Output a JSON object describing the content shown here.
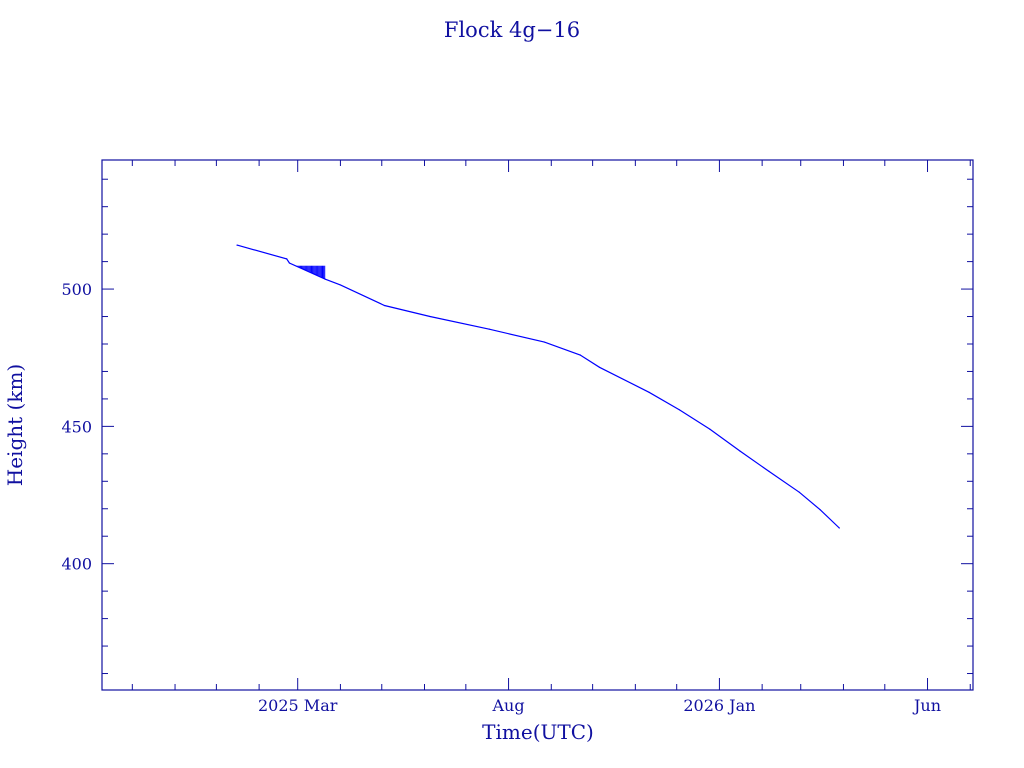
{
  "chart_data": {
    "type": "line",
    "title": "Flock 4g−16",
    "xlabel": "Time(UTC)",
    "ylabel": "Height (km)",
    "x_units": "days since 2025-03-01",
    "xlim": [
      -142,
      490
    ],
    "ylim": [
      354,
      547
    ],
    "x_ticks": [
      {
        "value": 0,
        "label": "2025 Mar"
      },
      {
        "value": 153,
        "label": "Aug"
      },
      {
        "value": 306,
        "label": "2026 Jan"
      },
      {
        "value": 457,
        "label": "Jun"
      }
    ],
    "x_minor_tick_values": [
      -142,
      -120,
      -89,
      -59,
      -28,
      31,
      61,
      92,
      122,
      184,
      214,
      245,
      275,
      337,
      365,
      396,
      426,
      488
    ],
    "y_ticks": [
      400,
      450,
      500
    ],
    "y_minor_step": 10,
    "grid": false,
    "colors": {
      "axis": "#1010a0",
      "line": "#0000ff"
    },
    "series": [
      {
        "name": "Flock 4g-16",
        "x": [
          -44,
          -8,
          -6,
          20,
          31,
          63,
          96,
          139,
          179,
          205,
          219,
          255,
          277,
          299,
          321,
          342,
          364,
          379,
          393
        ],
        "y": [
          516,
          511,
          509.5,
          503.6,
          501.5,
          494,
          490,
          485.4,
          480.7,
          476,
          471.5,
          462.4,
          456,
          449,
          441,
          433.6,
          426,
          419.7,
          413
        ]
      }
    ],
    "noise_band": {
      "x_range": [
        -6,
        20
      ],
      "y_top": 508.5
    }
  }
}
